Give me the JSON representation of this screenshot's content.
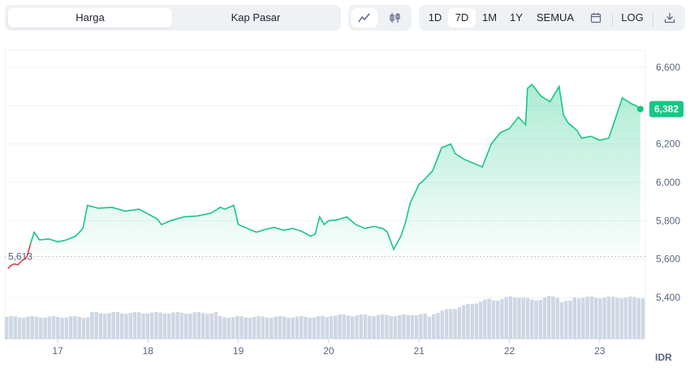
{
  "tabs": {
    "price_label": "Harga",
    "market_cap_label": "Kap Pasar"
  },
  "chart_type_toggle": {
    "line_icon": "line-chart-icon",
    "candle_icon": "candlestick-icon"
  },
  "ranges": [
    "1D",
    "7D",
    "1M",
    "1Y",
    "SEMUA"
  ],
  "active_range": "7D",
  "calendar_icon": "calendar-icon",
  "log_label": "LOG",
  "download_icon": "download-icon",
  "colors": {
    "up": "#16c784",
    "down": "#ea3943",
    "volume": "#cfd6e4",
    "grid": "#eff2f5",
    "text": "#58667e"
  },
  "chart_data": {
    "type": "line",
    "x_ticks": [
      "17",
      "18",
      "19",
      "20",
      "21",
      "22",
      "23"
    ],
    "y_ticks": [
      "6,600",
      "6,400",
      "6,200",
      "6,000",
      "5,800",
      "5,600",
      "5,400"
    ],
    "ylim": [
      5400,
      6600
    ],
    "currency": "IDR",
    "open_label": "5,613",
    "open_value": 5613,
    "last_label": "6,382",
    "last_value": 6382,
    "series": [
      {
        "values": [
          [
            16.45,
            5550
          ],
          [
            16.48,
            5565
          ],
          [
            16.52,
            5575
          ],
          [
            16.56,
            5570
          ],
          [
            16.6,
            5590
          ],
          [
            16.63,
            5600
          ],
          [
            16.66,
            5613
          ],
          [
            16.7,
            5680
          ],
          [
            16.74,
            5740
          ],
          [
            16.8,
            5700
          ],
          [
            16.9,
            5705
          ],
          [
            17.0,
            5690
          ],
          [
            17.1,
            5700
          ],
          [
            17.2,
            5720
          ],
          [
            17.28,
            5760
          ],
          [
            17.33,
            5880
          ],
          [
            17.45,
            5865
          ],
          [
            17.6,
            5870
          ],
          [
            17.75,
            5850
          ],
          [
            17.9,
            5860
          ],
          [
            18.0,
            5835
          ],
          [
            18.1,
            5810
          ],
          [
            18.15,
            5780
          ],
          [
            18.25,
            5800
          ],
          [
            18.4,
            5820
          ],
          [
            18.55,
            5825
          ],
          [
            18.7,
            5840
          ],
          [
            18.8,
            5870
          ],
          [
            18.85,
            5860
          ],
          [
            18.95,
            5880
          ],
          [
            19.0,
            5780
          ],
          [
            19.1,
            5760
          ],
          [
            19.2,
            5740
          ],
          [
            19.3,
            5755
          ],
          [
            19.4,
            5765
          ],
          [
            19.5,
            5750
          ],
          [
            19.6,
            5760
          ],
          [
            19.7,
            5745
          ],
          [
            19.8,
            5720
          ],
          [
            19.85,
            5730
          ],
          [
            19.9,
            5820
          ],
          [
            19.95,
            5780
          ],
          [
            20.0,
            5800
          ],
          [
            20.1,
            5805
          ],
          [
            20.2,
            5820
          ],
          [
            20.3,
            5780
          ],
          [
            20.4,
            5760
          ],
          [
            20.5,
            5770
          ],
          [
            20.6,
            5760
          ],
          [
            20.65,
            5740
          ],
          [
            20.72,
            5650
          ],
          [
            20.8,
            5720
          ],
          [
            20.85,
            5790
          ],
          [
            20.9,
            5890
          ],
          [
            21.0,
            5990
          ],
          [
            21.05,
            6010
          ],
          [
            21.15,
            6060
          ],
          [
            21.25,
            6180
          ],
          [
            21.35,
            6200
          ],
          [
            21.4,
            6150
          ],
          [
            21.5,
            6120
          ],
          [
            21.6,
            6100
          ],
          [
            21.7,
            6080
          ],
          [
            21.8,
            6200
          ],
          [
            21.9,
            6260
          ],
          [
            22.0,
            6280
          ],
          [
            22.1,
            6340
          ],
          [
            22.18,
            6300
          ],
          [
            22.2,
            6490
          ],
          [
            22.25,
            6510
          ],
          [
            22.35,
            6450
          ],
          [
            22.45,
            6420
          ],
          [
            22.5,
            6460
          ],
          [
            22.55,
            6500
          ],
          [
            22.6,
            6350
          ],
          [
            22.65,
            6310
          ],
          [
            22.75,
            6270
          ],
          [
            22.8,
            6230
          ],
          [
            22.9,
            6240
          ],
          [
            23.0,
            6220
          ],
          [
            23.1,
            6230
          ],
          [
            23.15,
            6300
          ],
          [
            23.25,
            6440
          ],
          [
            23.35,
            6410
          ],
          [
            23.4,
            6400
          ],
          [
            23.45,
            6382
          ]
        ]
      }
    ]
  }
}
